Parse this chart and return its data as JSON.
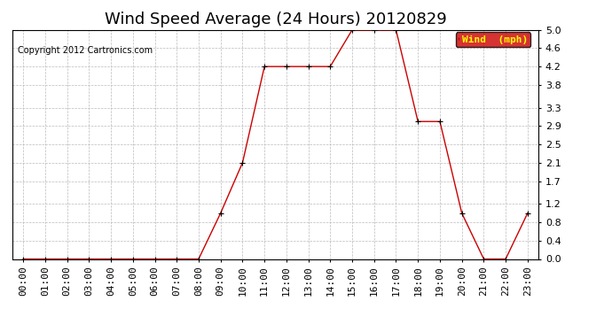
{
  "title": "Wind Speed Average (24 Hours) 20120829",
  "copyright": "Copyright 2012 Cartronics.com",
  "legend_label": "Wind  (mph)",
  "x_labels": [
    "00:00",
    "01:00",
    "02:00",
    "03:00",
    "04:00",
    "05:00",
    "06:00",
    "07:00",
    "08:00",
    "09:00",
    "10:00",
    "11:00",
    "12:00",
    "13:00",
    "14:00",
    "15:00",
    "16:00",
    "17:00",
    "18:00",
    "19:00",
    "20:00",
    "21:00",
    "22:00",
    "23:00"
  ],
  "y_values": [
    0.0,
    0.0,
    0.0,
    0.0,
    0.0,
    0.0,
    0.0,
    0.0,
    0.0,
    1.0,
    2.1,
    4.2,
    4.2,
    4.2,
    4.2,
    5.0,
    5.0,
    5.0,
    3.0,
    3.0,
    1.0,
    0.0,
    0.0,
    1.0
  ],
  "y_ticks": [
    0.0,
    0.4,
    0.8,
    1.2,
    1.7,
    2.1,
    2.5,
    2.9,
    3.3,
    3.8,
    4.2,
    4.6,
    5.0
  ],
  "ylim": [
    0.0,
    5.0
  ],
  "line_color": "#cc0000",
  "marker_color": "#000000",
  "bg_color": "#ffffff",
  "grid_color": "#bbbbbb",
  "title_fontsize": 13,
  "axis_fontsize": 8,
  "copyright_fontsize": 7,
  "legend_bg": "#cc0000",
  "legend_text_color": "#ffff00"
}
